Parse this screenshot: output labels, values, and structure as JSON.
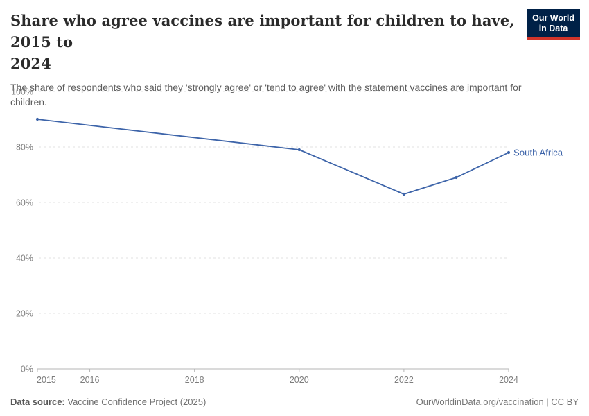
{
  "header": {
    "title_lines": [
      "Share who agree vaccines are important for children to have, 2015 to",
      "2024"
    ],
    "subtitle_lines": [
      "The share of respondents who said they 'strongly agree' or 'tend to agree' with the statement vaccines are important for",
      "children."
    ]
  },
  "logo": {
    "line1": "Our World",
    "line2": "in Data",
    "bg_color": "#002147",
    "stripe_color": "#d0342a"
  },
  "chart_data": {
    "type": "line",
    "title": "Share who agree vaccines are important for children to have, 2015 to 2024",
    "x": [
      2015,
      2020,
      2022,
      2023,
      2024
    ],
    "series": [
      {
        "name": "South Africa",
        "values": [
          90,
          79,
          63,
          69,
          78
        ],
        "color": "#3d64a9"
      }
    ],
    "xlabel": "",
    "ylabel": "",
    "ylim": [
      0,
      100
    ],
    "xlim": [
      2015,
      2024
    ],
    "yticks": [
      {
        "value": 0,
        "label": "0%"
      },
      {
        "value": 20,
        "label": "20%"
      },
      {
        "value": 40,
        "label": "40%"
      },
      {
        "value": 60,
        "label": "60%"
      },
      {
        "value": 80,
        "label": "80%"
      },
      {
        "value": 100,
        "label": "100%"
      }
    ],
    "xticks": [
      {
        "value": 2015,
        "label": "2015"
      },
      {
        "value": 2016,
        "label": "2016"
      },
      {
        "value": 2018,
        "label": "2018"
      },
      {
        "value": 2020,
        "label": "2020"
      },
      {
        "value": 2022,
        "label": "2022"
      },
      {
        "value": 2024,
        "label": "2024"
      }
    ],
    "grid": "horizontal-dashed",
    "legend_position": "end-of-line-label"
  },
  "footer": {
    "source_label": "Data source:",
    "source_value": "Vaccine Confidence Project (2025)",
    "right_text": "OurWorldinData.org/vaccination | CC BY"
  }
}
